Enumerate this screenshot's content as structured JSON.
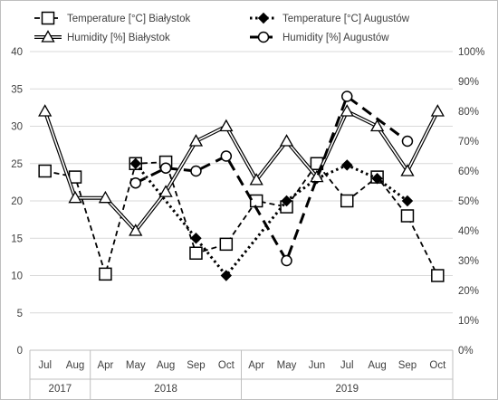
{
  "chart_data": {
    "type": "line",
    "categories": [
      "Jul",
      "Aug",
      "Apr",
      "May",
      "Aug",
      "Sep",
      "Oct",
      "Apr",
      "May",
      "Jun",
      "Jul",
      "Aug",
      "Sep",
      "Oct"
    ],
    "year_groups": [
      {
        "label": "2017",
        "start": 0,
        "end": 1
      },
      {
        "label": "2018",
        "start": 2,
        "end": 6
      },
      {
        "label": "2019",
        "start": 7,
        "end": 13
      }
    ],
    "ylim_left": [
      0,
      40
    ],
    "yticks_left": [
      "0",
      "5",
      "10",
      "15",
      "20",
      "25",
      "30",
      "35",
      "40"
    ],
    "ylim_right": [
      0,
      100
    ],
    "yticks_right": [
      "0%",
      "10%",
      "20%",
      "30%",
      "40%",
      "50%",
      "60%",
      "70%",
      "80%",
      "90%",
      "100%"
    ],
    "grid": true,
    "legend_position": "top",
    "series": [
      {
        "name": "Temperature [°C] Białystok",
        "axis": "left",
        "style": "dashed",
        "marker": "square",
        "color": "#000000",
        "values": [
          24.0,
          23.2,
          10.2,
          25.0,
          25.2,
          13.0,
          14.2,
          20.0,
          19.2,
          25.0,
          20.0,
          23.2,
          18.0,
          10.0
        ]
      },
      {
        "name": "Temperature [°C] Augustów",
        "axis": "left",
        "style": "dotted",
        "marker": "diamond",
        "color": "#000000",
        "values": [
          null,
          null,
          null,
          25.0,
          null,
          15.0,
          10.0,
          null,
          20.0,
          23.0,
          24.8,
          23.0,
          20.0,
          null
        ]
      },
      {
        "name": "Humidity [%] Białystok",
        "axis": "right",
        "style": "double",
        "marker": "triangle",
        "color": "#000000",
        "values": [
          80,
          51,
          51,
          40,
          53,
          70,
          75,
          57,
          70,
          58,
          80,
          75,
          60,
          80
        ]
      },
      {
        "name": "Humidity [%] Augustów",
        "axis": "right",
        "style": "long-dash",
        "marker": "circle",
        "color": "#000000",
        "values": [
          null,
          null,
          null,
          56,
          61,
          60,
          65,
          null,
          30,
          null,
          85,
          null,
          70,
          null
        ]
      }
    ]
  }
}
